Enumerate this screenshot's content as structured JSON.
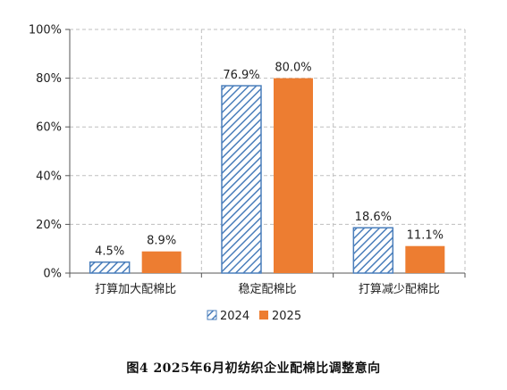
{
  "caption": "图4   2025年6月初纺织企业配棉比调整意向",
  "colors": {
    "s2024": "#4a7ebb",
    "s2025": "#ed7d31",
    "grid": "#bfbfbf",
    "axis": "#555555"
  },
  "chart_data": {
    "type": "bar",
    "categories": [
      "打算加大配棉比",
      "稳定配棉比",
      "打算减少配棉比"
    ],
    "series": [
      {
        "name": "2024",
        "values": [
          4.5,
          76.9,
          18.6
        ],
        "labels": [
          "4.5%",
          "76.9%",
          "18.6%"
        ],
        "pattern": "diagonal-hatch"
      },
      {
        "name": "2025",
        "values": [
          8.9,
          80.0,
          11.1
        ],
        "labels": [
          "8.9%",
          "80.0%",
          "11.1%"
        ],
        "pattern": "solid"
      }
    ],
    "ylim": [
      0,
      100
    ],
    "yticks": [
      "0%",
      "20%",
      "40%",
      "60%",
      "80%",
      "100%"
    ],
    "ytick_values": [
      0,
      20,
      40,
      60,
      80,
      100
    ],
    "grid": true,
    "legend_position": "bottom"
  }
}
